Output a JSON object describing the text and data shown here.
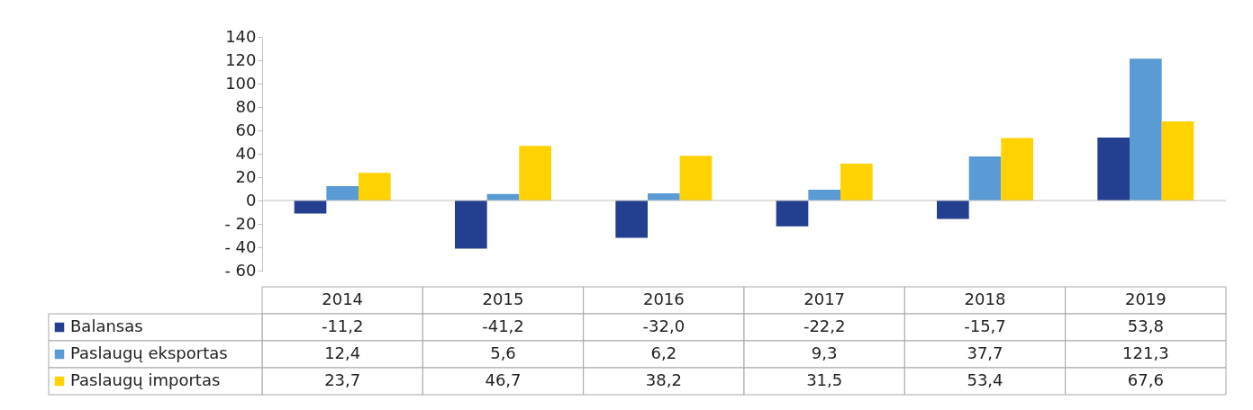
{
  "chart_data": {
    "type": "bar",
    "categories": [
      "2014",
      "2015",
      "2016",
      "2017",
      "2018",
      "2019"
    ],
    "series": [
      {
        "name": "Balansas",
        "color": "#243f8f",
        "values": [
          -11.2,
          -41.2,
          -32.0,
          -22.2,
          -15.7,
          53.8
        ],
        "value_labels": [
          "-11,2",
          "-41,2",
          "-32,0",
          "-22,2",
          "-15,7",
          "53,8"
        ]
      },
      {
        "name": "Paslaugų eksportas",
        "color": "#5b9bd5",
        "values": [
          12.4,
          5.6,
          6.2,
          9.3,
          37.7,
          121.3
        ],
        "value_labels": [
          "12,4",
          "5,6",
          "6,2",
          "9,3",
          "37,7",
          "121,3"
        ]
      },
      {
        "name": "Paslaugų importas",
        "color": "#ffd200",
        "values": [
          23.7,
          46.7,
          38.2,
          31.5,
          53.4,
          67.6
        ],
        "value_labels": [
          "23,7",
          "46,7",
          "38,2",
          "31,5",
          "53,4",
          "67,6"
        ]
      }
    ],
    "ylim": [
      -60,
      140
    ],
    "yticks": [
      {
        "value": -60,
        "label": "- 60"
      },
      {
        "value": -40,
        "label": "- 40"
      },
      {
        "value": -20,
        "label": "- 20"
      },
      0,
      20,
      40,
      60,
      80,
      100,
      120,
      140
    ],
    "ref_lines": [
      {
        "axis": "y",
        "value": 0,
        "color": "#bfbfbf"
      }
    ],
    "grid": false,
    "legend": "bottom left"
  }
}
